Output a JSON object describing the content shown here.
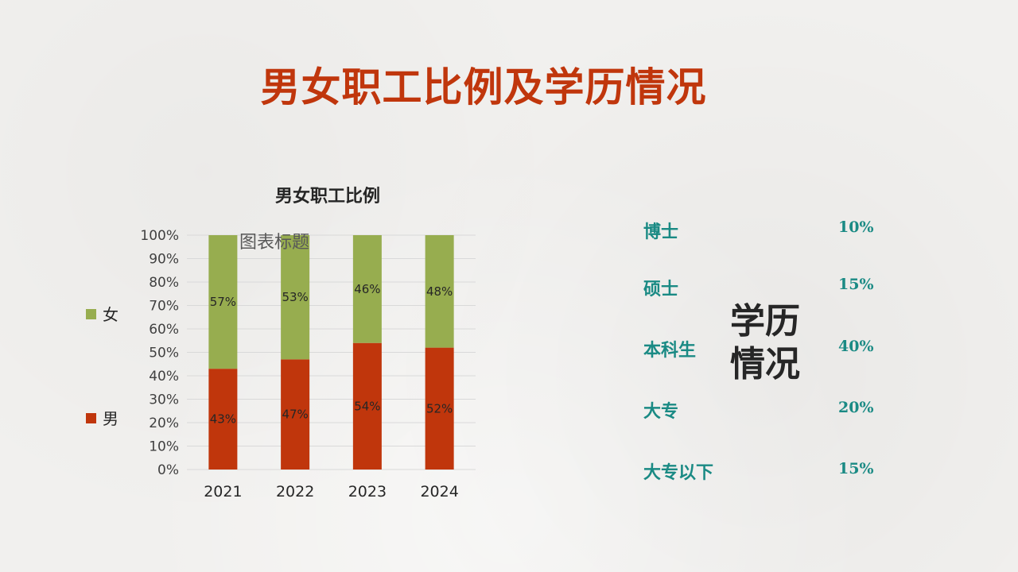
{
  "page": {
    "title": "男女职工比例及学历情况"
  },
  "colors": {
    "title": "#c0360c",
    "male": "#c0360c",
    "female": "#97ad4f",
    "teal": "#1a8a84"
  },
  "chart_data": {
    "type": "bar",
    "stacked": true,
    "title": "男女职工比例",
    "placeholder_text": "图表标题",
    "categories": [
      "2021",
      "2022",
      "2023",
      "2024"
    ],
    "series": [
      {
        "name": "男",
        "values": [
          43,
          47,
          54,
          52
        ],
        "labels": [
          "43%",
          "47%",
          "54%",
          "52%"
        ]
      },
      {
        "name": "女",
        "values": [
          57,
          53,
          46,
          48
        ],
        "labels": [
          "57%",
          "53%",
          "46%",
          "48%"
        ]
      }
    ],
    "y_ticks": [
      "0%",
      "10%",
      "20%",
      "30%",
      "40%",
      "50%",
      "60%",
      "70%",
      "80%",
      "90%",
      "100%"
    ],
    "ylim": [
      0,
      100
    ],
    "grid": true,
    "legend": "left"
  },
  "education": {
    "center_label_line1": "学历",
    "center_label_line2": "情况",
    "items": [
      {
        "label": "博士",
        "value": "10%"
      },
      {
        "label": "硕士",
        "value": "15%"
      },
      {
        "label": "本科生",
        "value": "40%"
      },
      {
        "label": "大专",
        "value": "20%"
      },
      {
        "label": "大专以下",
        "value": "15%"
      }
    ]
  }
}
